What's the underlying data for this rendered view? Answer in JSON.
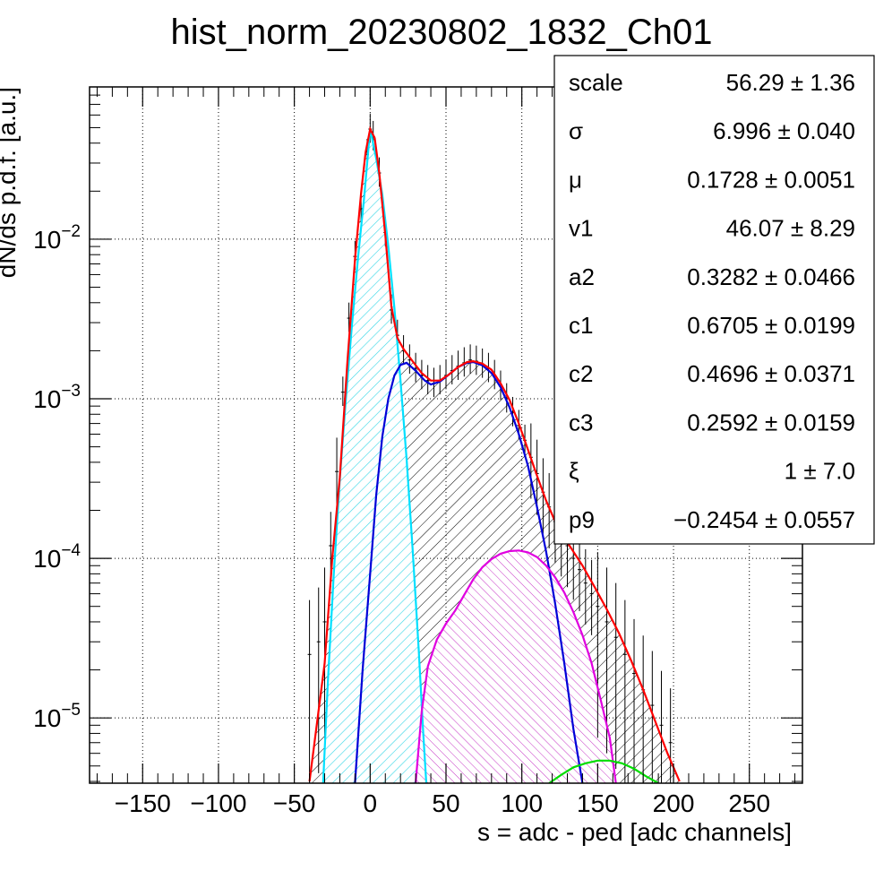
{
  "chart_data": {
    "type": "histogram",
    "title": "hist_norm_20230802_1832_Ch01",
    "xlabel": "s = adc - ped [adc channels]",
    "ylabel": "dN/ds p.d.f. [a.u.]",
    "xlim": [
      -185,
      285
    ],
    "ylim": [
      3.9e-06,
      0.09
    ],
    "y_log_scale": true,
    "grid": true,
    "x_ticks": [
      {
        "v": -150,
        "label": "−150"
      },
      {
        "v": -100,
        "label": "−100"
      },
      {
        "v": -50,
        "label": "−50"
      },
      {
        "v": 0,
        "label": "0"
      },
      {
        "v": 50,
        "label": "50"
      },
      {
        "v": 100,
        "label": "100"
      },
      {
        "v": 150,
        "label": "150"
      },
      {
        "v": 200,
        "label": "200"
      },
      {
        "v": 250,
        "label": "250"
      }
    ],
    "y_ticks": [
      {
        "v": 1e-05,
        "base": "10",
        "exp": "−5"
      },
      {
        "v": 0.0001,
        "base": "10",
        "exp": "−4"
      },
      {
        "v": 0.001,
        "base": "10",
        "exp": "−3"
      },
      {
        "v": 0.01,
        "base": "10",
        "exp": "−2"
      }
    ],
    "data_points": [
      [
        -40,
        2.5e-05
      ],
      [
        -34,
        3e-05
      ],
      [
        -30,
        4e-05
      ],
      [
        -26,
        0.00012
      ],
      [
        -22,
        0.00035
      ],
      [
        -18,
        0.0011
      ],
      [
        -14,
        0.0032
      ],
      [
        -10,
        0.0078
      ],
      [
        -6,
        0.0155
      ],
      [
        -2,
        0.034
      ],
      [
        0,
        0.049
      ],
      [
        2,
        0.044
      ],
      [
        6,
        0.026
      ],
      [
        10,
        0.011
      ],
      [
        14,
        0.0036
      ],
      [
        18,
        0.0025
      ],
      [
        22,
        0.002
      ],
      [
        26,
        0.00175
      ],
      [
        30,
        0.00155
      ],
      [
        34,
        0.0014
      ],
      [
        38,
        0.0013
      ],
      [
        42,
        0.00125
      ],
      [
        46,
        0.0013
      ],
      [
        50,
        0.0014
      ],
      [
        54,
        0.0015
      ],
      [
        58,
        0.0016
      ],
      [
        62,
        0.00168
      ],
      [
        66,
        0.00175
      ],
      [
        70,
        0.00172
      ],
      [
        74,
        0.00165
      ],
      [
        78,
        0.00155
      ],
      [
        82,
        0.0014
      ],
      [
        86,
        0.0012
      ],
      [
        90,
        0.001
      ],
      [
        94,
        0.00082
      ],
      [
        98,
        0.00068
      ],
      [
        102,
        0.00055
      ],
      [
        106,
        0.00043
      ],
      [
        110,
        0.00034
      ],
      [
        114,
        0.00026
      ],
      [
        118,
        0.00021
      ],
      [
        122,
        0.00017
      ],
      [
        126,
        0.00014
      ],
      [
        130,
        0.00012
      ],
      [
        134,
        0.0001
      ],
      [
        138,
        8.5e-05
      ],
      [
        142,
        7e-05
      ],
      [
        146,
        6e-05
      ],
      [
        150,
        5e-05
      ],
      [
        156,
        4e-05
      ],
      [
        162,
        3.2e-05
      ],
      [
        168,
        2.5e-05
      ],
      [
        174,
        1.9e-05
      ],
      [
        180,
        1.5e-05
      ],
      [
        186,
        1.2e-05
      ],
      [
        192,
        9e-06
      ],
      [
        198,
        7e-06
      ]
    ],
    "curves": [
      {
        "color": "#ff0000",
        "points": [
          [
            -40,
            4e-06
          ],
          [
            -30,
            2.2e-05
          ],
          [
            -25,
            0.0001
          ],
          [
            -20,
            0.00032
          ],
          [
            -15,
            0.0017
          ],
          [
            -10,
            0.0075
          ],
          [
            -6,
            0.0195
          ],
          [
            -3,
            0.035
          ],
          [
            0,
            0.049
          ],
          [
            3,
            0.043
          ],
          [
            6,
            0.026
          ],
          [
            10,
            0.0105
          ],
          [
            14,
            0.0038
          ],
          [
            18,
            0.0024
          ],
          [
            22,
            0.00205
          ],
          [
            28,
            0.00172
          ],
          [
            34,
            0.00145
          ],
          [
            40,
            0.0013
          ],
          [
            46,
            0.0013
          ],
          [
            52,
            0.00142
          ],
          [
            58,
            0.00158
          ],
          [
            64,
            0.0017
          ],
          [
            68,
            0.00172
          ],
          [
            74,
            0.00166
          ],
          [
            80,
            0.00152
          ],
          [
            86,
            0.00125
          ],
          [
            92,
            0.00098
          ],
          [
            98,
            0.0007
          ],
          [
            104,
            0.00048
          ],
          [
            110,
            0.00033
          ],
          [
            116,
            0.00023
          ],
          [
            122,
            0.00017
          ],
          [
            128,
            0.000135
          ],
          [
            134,
            0.00011
          ],
          [
            140,
            9e-05
          ],
          [
            148,
            6.6e-05
          ],
          [
            156,
            4.8e-05
          ],
          [
            164,
            3.4e-05
          ],
          [
            172,
            2.3e-05
          ],
          [
            180,
            1.5e-05
          ],
          [
            188,
            9.5e-06
          ],
          [
            196,
            6e-06
          ],
          [
            204,
            4e-06
          ]
        ]
      },
      {
        "color": "#00e0ff",
        "fill": true,
        "points": [
          [
            -31,
            3.9e-06
          ],
          [
            -28,
            1.6e-05
          ],
          [
            -24,
            8e-05
          ],
          [
            -20,
            0.00031
          ],
          [
            -16,
            0.001
          ],
          [
            -12,
            0.0029
          ],
          [
            -8,
            0.0077
          ],
          [
            -4,
            0.018
          ],
          [
            0,
            0.049
          ],
          [
            4,
            0.032
          ],
          [
            8,
            0.019
          ],
          [
            12,
            0.009
          ],
          [
            16,
            0.0037
          ],
          [
            20,
            0.0013
          ],
          [
            24,
            0.00042
          ],
          [
            28,
            0.000115
          ],
          [
            32,
            2.7e-05
          ],
          [
            35,
            8e-06
          ],
          [
            37,
            3.9e-06
          ]
        ]
      },
      {
        "color": "#0000d8",
        "fill": false,
        "points": [
          [
            -10,
            3.9e-06
          ],
          [
            -5,
            2e-05
          ],
          [
            0,
            8e-05
          ],
          [
            4,
            0.00025
          ],
          [
            8,
            0.00058
          ],
          [
            12,
            0.001
          ],
          [
            16,
            0.0014
          ],
          [
            20,
            0.00163
          ],
          [
            24,
            0.00168
          ],
          [
            30,
            0.0015
          ],
          [
            36,
            0.0013
          ],
          [
            40,
            0.00123
          ],
          [
            46,
            0.00128
          ],
          [
            52,
            0.00142
          ],
          [
            58,
            0.00158
          ],
          [
            64,
            0.00168
          ],
          [
            68,
            0.0017
          ],
          [
            74,
            0.00162
          ],
          [
            80,
            0.00145
          ],
          [
            86,
            0.00118
          ],
          [
            92,
            0.00088
          ],
          [
            98,
            0.0006
          ],
          [
            104,
            0.00038
          ],
          [
            110,
            0.00021
          ],
          [
            116,
            0.00011
          ],
          [
            122,
            5.2e-05
          ],
          [
            128,
            2.2e-05
          ],
          [
            134,
            8.5e-06
          ],
          [
            140,
            3.9e-06
          ]
        ]
      },
      {
        "color": "#e000e0",
        "fill": true,
        "points": [
          [
            30,
            3.9e-06
          ],
          [
            34,
            1.1e-05
          ],
          [
            38,
            2.1e-05
          ],
          [
            44,
            3.1e-05
          ],
          [
            50,
            3.9e-05
          ],
          [
            56,
            4.7e-05
          ],
          [
            62,
            5.9e-05
          ],
          [
            68,
            7.4e-05
          ],
          [
            74,
            8.8e-05
          ],
          [
            80,
            9.9e-05
          ],
          [
            86,
            0.000107
          ],
          [
            92,
            0.000111
          ],
          [
            98,
            0.000112
          ],
          [
            104,
            0.000109
          ],
          [
            110,
            0.000102
          ],
          [
            116,
            9e-05
          ],
          [
            122,
            7.6e-05
          ],
          [
            128,
            6.1e-05
          ],
          [
            134,
            4.6e-05
          ],
          [
            140,
            3.3e-05
          ],
          [
            146,
            2.2e-05
          ],
          [
            152,
            1.3e-05
          ],
          [
            158,
            7.5e-06
          ],
          [
            162,
            3.9e-06
          ]
        ]
      },
      {
        "color": "#00dd00",
        "fill": false,
        "points": [
          [
            118,
            3.9e-06
          ],
          [
            126,
            4.4e-06
          ],
          [
            134,
            4.9e-06
          ],
          [
            142,
            5.2e-06
          ],
          [
            150,
            5.4e-06
          ],
          [
            158,
            5.4e-06
          ],
          [
            166,
            5.2e-06
          ],
          [
            174,
            4.8e-06
          ],
          [
            182,
            4.3e-06
          ],
          [
            190,
            3.9e-06
          ]
        ]
      }
    ],
    "stats_box": [
      {
        "name": "scale",
        "value": "56.29 ± 1.36"
      },
      {
        "name": "σ",
        "value": "6.996 ± 0.040"
      },
      {
        "name": "μ",
        "value": "0.1728 ± 0.0051"
      },
      {
        "name": "v1",
        "value": "46.07 ± 8.29"
      },
      {
        "name": "a2",
        "value": "0.3282 ± 0.0466"
      },
      {
        "name": "c1",
        "value": "0.6705 ± 0.0199"
      },
      {
        "name": "c2",
        "value": "0.4696 ± 0.0371"
      },
      {
        "name": "c3",
        "value": "0.2592 ± 0.0159"
      },
      {
        "name": "ξ",
        "value": "1 ± 7.0"
      },
      {
        "name": "p9",
        "value": "−0.2454 ± 0.0557"
      }
    ]
  }
}
